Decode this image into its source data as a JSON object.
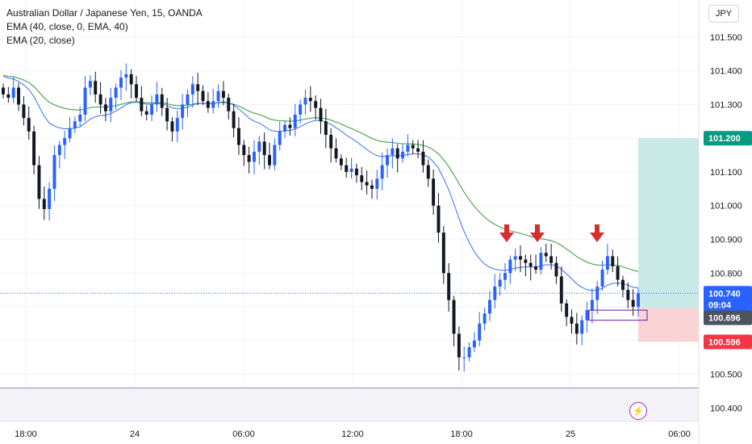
{
  "legend": {
    "title": "Australian Dollar / Japanese Yen, 15, OANDA",
    "ema40": "EMA (40, close, 0, EMA, 40)",
    "ema20": "EMA (20, close)"
  },
  "currency_button": "JPY",
  "colors": {
    "up": "#2962ff",
    "down": "#131722",
    "ema20": "#4a7cf0",
    "ema40": "#43a047",
    "target": "#b2dfdb",
    "stop": "#f8c9cc",
    "support": "#6a1b9a",
    "arrow": "#d32f2f",
    "price_tag": "#2962ff",
    "target_tag": "#089981",
    "stop_tag": "#f23645",
    "entry_tag": "#4c525e"
  },
  "chart_data": {
    "type": "candlestick",
    "symbol": "AUDJPY",
    "timeframe": "15",
    "ylim": [
      100.36,
      101.61
    ],
    "y_ticks": [
      "101.500",
      "101.400",
      "101.300",
      "101.200",
      "101.100",
      "101.000",
      "100.900",
      "100.800",
      "100.700",
      "100.600",
      "100.500",
      "100.400"
    ],
    "x_ticks": [
      "18:00",
      "24",
      "06:00",
      "12:00",
      "18:00",
      "25",
      "06:00"
    ],
    "price_labels": {
      "current": "100.740",
      "countdown": "09:04",
      "entry": "100.696",
      "target": "101.200",
      "stop": "100.596"
    },
    "support_level": 100.458,
    "arrows": 3,
    "closes": [
      101.33,
      101.32,
      101.35,
      101.3,
      101.26,
      101.22,
      101.12,
      101.02,
      100.99,
      101.05,
      101.15,
      101.18,
      101.2,
      101.23,
      101.25,
      101.27,
      101.35,
      101.37,
      101.33,
      101.3,
      101.28,
      101.32,
      101.35,
      101.38,
      101.39,
      101.36,
      101.32,
      101.28,
      101.27,
      101.3,
      101.33,
      101.29,
      101.25,
      101.22,
      101.26,
      101.3,
      101.33,
      101.36,
      101.34,
      101.31,
      101.29,
      101.31,
      101.34,
      101.32,
      101.28,
      101.23,
      101.18,
      101.15,
      101.13,
      101.16,
      101.19,
      101.15,
      101.12,
      101.18,
      101.22,
      101.24,
      101.23,
      101.27,
      101.3,
      101.32,
      101.31,
      101.29,
      101.25,
      101.21,
      101.17,
      101.14,
      101.12,
      101.1,
      101.11,
      101.09,
      101.07,
      101.06,
      101.05,
      101.08,
      101.12,
      101.15,
      101.17,
      101.14,
      101.16,
      101.18,
      101.17,
      101.16,
      101.12,
      101.08,
      101.0,
      100.92,
      100.8,
      100.72,
      100.62,
      100.55,
      100.55,
      100.58,
      100.6,
      100.65,
      100.68,
      100.72,
      100.76,
      100.78,
      100.8,
      100.84,
      100.85,
      100.84,
      100.83,
      100.82,
      100.81,
      100.86,
      100.85,
      100.83,
      100.79,
      100.71,
      100.67,
      100.65,
      100.62,
      100.66,
      100.69,
      100.72,
      100.76,
      100.81,
      100.85,
      100.82,
      100.78,
      100.75,
      100.72,
      100.7,
      100.74
    ]
  }
}
